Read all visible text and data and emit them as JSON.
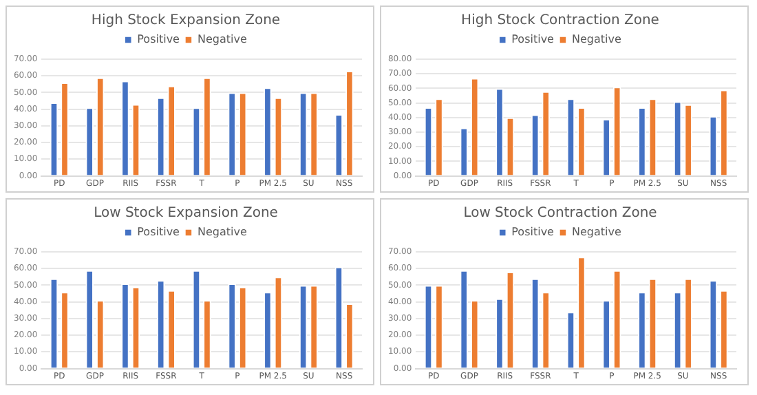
{
  "chart_data": [
    {
      "type": "bar",
      "title": "High Stock Expansion Zone",
      "categories": [
        "PD",
        "GDP",
        "RIIS",
        "FSSR",
        "T",
        "P",
        "PM 2.5",
        "SU",
        "NSS"
      ],
      "series": [
        {
          "name": "Positive",
          "color": "#4472c4",
          "values": [
            44,
            41,
            57,
            47,
            41,
            50,
            53,
            50,
            37
          ]
        },
        {
          "name": "Negative",
          "color": "#ed7d31",
          "values": [
            56,
            59,
            43,
            54,
            59,
            50,
            47,
            50,
            63
          ]
        }
      ],
      "ylim": [
        0,
        70
      ],
      "yticks": [
        {
          "value": 0,
          "label": "0.00"
        },
        {
          "value": 10,
          "label": "10.00"
        },
        {
          "value": 20,
          "label": "20.00"
        },
        {
          "value": 30,
          "label": "30.00"
        },
        {
          "value": 40,
          "label": "40.00"
        },
        {
          "value": 50,
          "label": "50.00"
        },
        {
          "value": 60,
          "label": "60.00"
        },
        {
          "value": 70,
          "label": "70.00"
        }
      ],
      "grid": "y",
      "legend": "top"
    },
    {
      "type": "bar",
      "title": "High Stock Contraction Zone",
      "categories": [
        "PD",
        "GDP",
        "RIIS",
        "FSSR",
        "T",
        "P",
        "PM 2.5",
        "SU",
        "NSS"
      ],
      "series": [
        {
          "name": "Positive",
          "color": "#4472c4",
          "values": [
            47,
            33,
            60,
            42,
            53,
            39,
            47,
            51,
            41
          ]
        },
        {
          "name": "Negative",
          "color": "#ed7d31",
          "values": [
            53,
            67,
            40,
            58,
            47,
            61,
            53,
            49,
            59
          ]
        }
      ],
      "ylim": [
        0,
        80
      ],
      "yticks": [
        {
          "value": 0,
          "label": "0.00"
        },
        {
          "value": 10,
          "label": "10.00"
        },
        {
          "value": 20,
          "label": "20.00"
        },
        {
          "value": 30,
          "label": "30.00"
        },
        {
          "value": 40,
          "label": "40.00"
        },
        {
          "value": 50,
          "label": "50.00"
        },
        {
          "value": 60,
          "label": "60.00"
        },
        {
          "value": 70,
          "label": "70.00"
        },
        {
          "value": 80,
          "label": "80.00"
        }
      ],
      "grid": "y",
      "legend": "top"
    },
    {
      "type": "bar",
      "title": "Low Stock Expansion Zone",
      "categories": [
        "PD",
        "GDP",
        "RIIS",
        "FSSR",
        "T",
        "P",
        "PM 2.5",
        "SU",
        "NSS"
      ],
      "series": [
        {
          "name": "Positive",
          "color": "#4472c4",
          "values": [
            54,
            59,
            51,
            53,
            59,
            51,
            46,
            50,
            61
          ]
        },
        {
          "name": "Negative",
          "color": "#ed7d31",
          "values": [
            46,
            41,
            49,
            47,
            41,
            49,
            55,
            50,
            39
          ]
        }
      ],
      "ylim": [
        0,
        70
      ],
      "yticks": [
        {
          "value": 0,
          "label": "0.00"
        },
        {
          "value": 10,
          "label": "10.00"
        },
        {
          "value": 20,
          "label": "20.00"
        },
        {
          "value": 30,
          "label": "30.00"
        },
        {
          "value": 40,
          "label": "40.00"
        },
        {
          "value": 50,
          "label": "50.00"
        },
        {
          "value": 60,
          "label": "60.00"
        },
        {
          "value": 70,
          "label": "70.00"
        }
      ],
      "grid": "y",
      "legend": "top"
    },
    {
      "type": "bar",
      "title": "Low Stock Contraction Zone",
      "categories": [
        "PD",
        "GDP",
        "RIIS",
        "FSSR",
        "T",
        "P",
        "PM 2.5",
        "SU",
        "NSS"
      ],
      "series": [
        {
          "name": "Positive",
          "color": "#4472c4",
          "values": [
            50,
            59,
            42,
            54,
            34,
            41,
            46,
            46,
            53
          ]
        },
        {
          "name": "Negative",
          "color": "#ed7d31",
          "values": [
            50,
            41,
            58,
            46,
            67,
            59,
            54,
            54,
            47
          ]
        }
      ],
      "ylim": [
        0,
        70
      ],
      "yticks": [
        {
          "value": 0,
          "label": "0.00"
        },
        {
          "value": 10,
          "label": "10.00"
        },
        {
          "value": 20,
          "label": "20.00"
        },
        {
          "value": 30,
          "label": "30.00"
        },
        {
          "value": 40,
          "label": "40.00"
        },
        {
          "value": 50,
          "label": "50.00"
        },
        {
          "value": 60,
          "label": "60.00"
        },
        {
          "value": 70,
          "label": "70.00"
        }
      ],
      "grid": "y",
      "legend": "top"
    }
  ]
}
